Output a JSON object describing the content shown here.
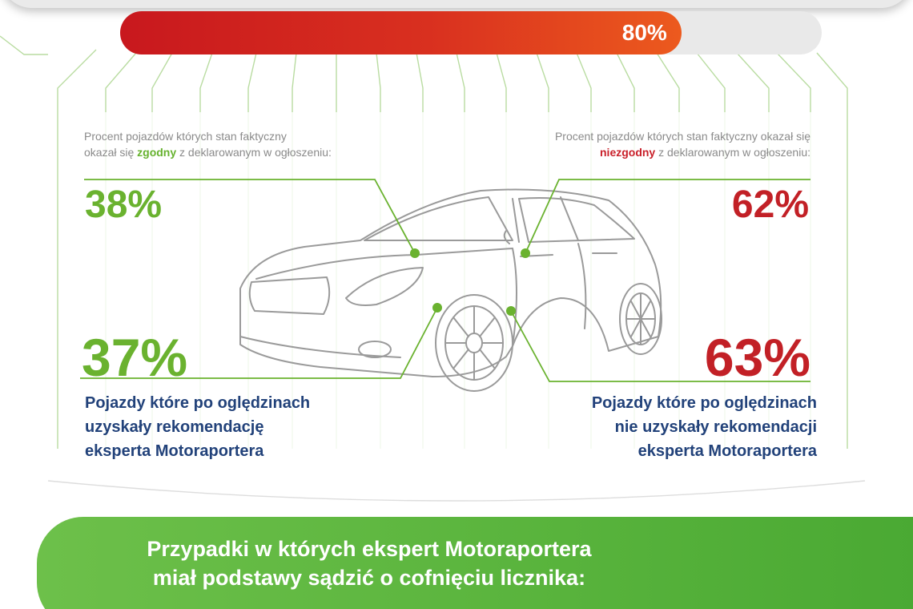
{
  "progress": {
    "label": "80%",
    "value": 80
  },
  "left": {
    "caption_line1": "Procent pojazdów których stan faktyczny",
    "caption_line2_pre": "okazał się ",
    "caption_highlight": "zgodny",
    "caption_line2_post": " z deklarowanym w ogłoszeniu:",
    "stat_top": "38%",
    "stat_bottom": "37%",
    "desc_line1": "Pojazdy które po oględzinach",
    "desc_line2": "uzyskały rekomendację",
    "desc_line3": "eksperta Motoraportera"
  },
  "right": {
    "caption_line1": "Procent pojazdów których stan faktyczny okazał się",
    "caption_highlight": "niezgodny",
    "caption_line2_post": " z deklarowanym w ogłoszeniu:",
    "stat_top": "62%",
    "stat_bottom": "63%",
    "desc_line1": "Pojazdy które po oględzinach",
    "desc_line2": "nie uzyskały rekomendacji",
    "desc_line3": "eksperta Motoraportera"
  },
  "banner": {
    "line1": "Przypadki w których ekspert Motoraportera",
    "line2": "miał podstawy sądzić o cofnięciu licznika:"
  },
  "colors": {
    "green": "#6ab22f",
    "red": "#c22026",
    "navy": "#22427a",
    "banner": "#58b33c"
  },
  "icons": {
    "car": "car-illustration"
  }
}
